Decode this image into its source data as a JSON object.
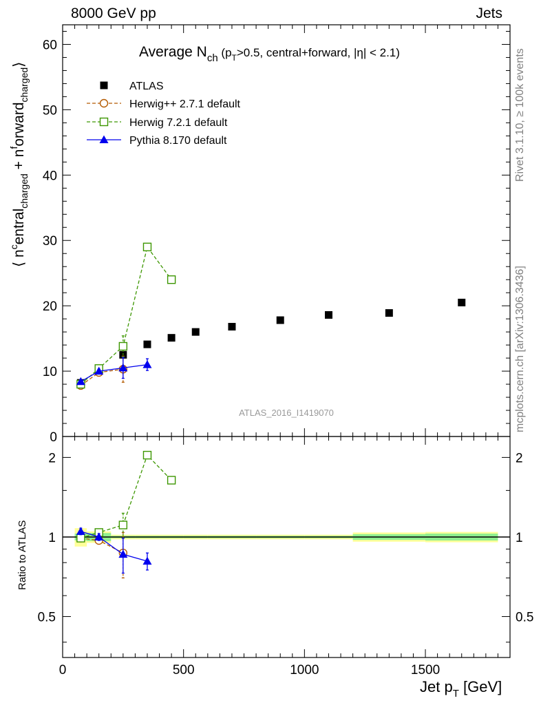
{
  "header": {
    "left": "8000 GeV pp",
    "right": "Jets"
  },
  "side_labels": {
    "top": "Rivet 3.1.10, ≥ 100k events",
    "bottom": "mcplots.cern.ch [arXiv:1306.3436]"
  },
  "chart_data": [
    {
      "type": "scatter",
      "panel": "main",
      "title": "Average N_ch (p_T>0.5, central+forward, |η| < 2.1)",
      "watermark": "ATLAS_2016_I1419070",
      "ylabel": "⟨ n^central_charged + n^forward_charged ⟩",
      "xlabel": "",
      "xlim": [
        0,
        1850
      ],
      "ylim": [
        0,
        63
      ],
      "yticks": [
        0,
        10,
        20,
        30,
        40,
        50,
        60
      ],
      "legend_position": "top-left",
      "series": [
        {
          "name": "ATLAS",
          "color": "#000000",
          "marker": "filled-square",
          "x": [
            75,
            150,
            250,
            350,
            450,
            550,
            700,
            900,
            1100,
            1350,
            1650
          ],
          "y": [
            8.2,
            10.2,
            12.5,
            14.1,
            15.1,
            16.0,
            16.8,
            17.8,
            18.6,
            18.9,
            20.5
          ]
        },
        {
          "name": "Herwig++ 2.7.1 default",
          "color": "#b35900",
          "marker": "open-circle",
          "line": "dashed",
          "x": [
            75,
            150,
            250
          ],
          "y": [
            7.8,
            9.8,
            10.3
          ],
          "yerr": [
            0.3,
            0.3,
            2.0
          ]
        },
        {
          "name": "Herwig 7.2.1 default",
          "color": "#3c9600",
          "marker": "open-square",
          "line": "dashed",
          "x": [
            75,
            150,
            250,
            350,
            450
          ],
          "y": [
            8.0,
            10.4,
            13.8,
            29.0,
            24.0
          ],
          "yerr": [
            0.3,
            0.3,
            1.6,
            0.3,
            0.3
          ]
        },
        {
          "name": "Pythia 8.170 default",
          "color": "#0000ee",
          "marker": "filled-triangle",
          "line": "solid",
          "x": [
            75,
            150,
            250,
            350
          ],
          "y": [
            8.4,
            10.0,
            10.5,
            11.0
          ],
          "yerr": [
            0.3,
            0.3,
            1.6,
            0.9
          ]
        }
      ]
    },
    {
      "type": "scatter",
      "panel": "ratio",
      "ylabel": "Ratio to ATLAS",
      "xlabel": "Jet p_T [GeV]",
      "xlim": [
        0,
        1850
      ],
      "ylim": [
        0.35,
        2.4
      ],
      "yscale": "log",
      "yticks": [
        0.5,
        1,
        2
      ],
      "xticks": [
        0,
        500,
        1000,
        1500
      ],
      "bands": {
        "edges": [
          50,
          100,
          200,
          300,
          400,
          500,
          600,
          800,
          1000,
          1200,
          1500,
          1800
        ],
        "stat_halfwidth": [
          0.03,
          0.035,
          0.01,
          0.01,
          0.01,
          0.01,
          0.01,
          0.01,
          0.01,
          0.025,
          0.03
        ],
        "total_halfwidth": [
          0.08,
          0.05,
          0.02,
          0.02,
          0.02,
          0.02,
          0.02,
          0.02,
          0.02,
          0.04,
          0.045
        ],
        "stat_color": "#8fef8f",
        "total_color": "#ffff99"
      },
      "series": [
        {
          "name": "Herwig++ 2.7.1 default",
          "color": "#b35900",
          "marker": "open-circle",
          "line": "dashed",
          "x": [
            75,
            150,
            250
          ],
          "y": [
            0.99,
            0.97,
            0.87
          ],
          "yerr": [
            0.03,
            0.03,
            0.17
          ]
        },
        {
          "name": "Herwig 7.2.1 default",
          "color": "#3c9600",
          "marker": "open-square",
          "line": "dashed",
          "x": [
            75,
            150,
            250,
            350,
            450
          ],
          "y": [
            0.99,
            1.04,
            1.11,
            2.04,
            1.64
          ],
          "yerr": [
            0.03,
            0.03,
            0.12,
            0.02,
            0.02
          ]
        },
        {
          "name": "Pythia 8.170 default",
          "color": "#0000ee",
          "marker": "filled-triangle",
          "line": "solid",
          "x": [
            75,
            150,
            250,
            350
          ],
          "y": [
            1.05,
            1.0,
            0.86,
            0.81
          ],
          "yerr": [
            0.03,
            0.03,
            0.13,
            0.06
          ]
        }
      ]
    }
  ]
}
